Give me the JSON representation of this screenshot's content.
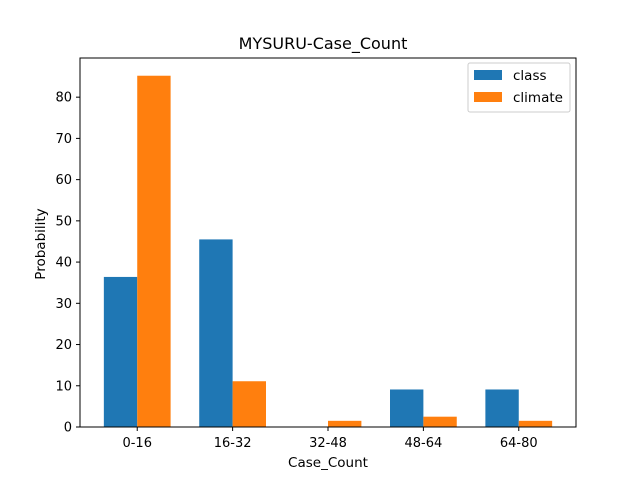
{
  "chart_data": {
    "type": "bar",
    "title": "MYSURU-Case_Count",
    "xlabel": "Case_Count",
    "ylabel": "Probability",
    "categories": [
      "0-16",
      "16-32",
      "32-48",
      "48-64",
      "64-80"
    ],
    "series": [
      {
        "name": "class",
        "color": "#1f77b4",
        "values": [
          36.4,
          45.5,
          0,
          9.1,
          9.1
        ]
      },
      {
        "name": "climate",
        "color": "#ff7f0e",
        "values": [
          85.2,
          11.1,
          1.5,
          2.5,
          1.5
        ]
      }
    ],
    "ylim": [
      0,
      89.5
    ],
    "yticks": [
      0,
      10,
      20,
      30,
      40,
      50,
      60,
      70,
      80
    ],
    "legend": "top-right",
    "grid": false
  }
}
